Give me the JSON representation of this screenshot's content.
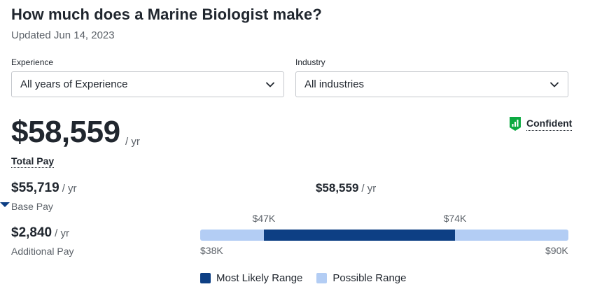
{
  "header": {
    "title": "How much does a Marine Biologist make?",
    "updated": "Updated Jun 14, 2023"
  },
  "filters": {
    "experience": {
      "label": "Experience",
      "value": "All years of Experience"
    },
    "industry": {
      "label": "Industry",
      "value": "All industries"
    }
  },
  "total_pay": {
    "amount": "$58,559",
    "unit": "/ yr",
    "label": "Total Pay"
  },
  "confidence": {
    "label": "Confident",
    "icon": "confidence-bars-icon",
    "color": "#0caa41"
  },
  "base_pay": {
    "amount": "$55,719",
    "unit": "/ yr",
    "label": "Base Pay"
  },
  "additional_pay": {
    "amount": "$2,840",
    "unit": "/ yr",
    "label": "Additional Pay"
  },
  "range": {
    "median_label": "$58,559",
    "median_unit": "/ yr",
    "median_value": 58559,
    "min": 38000,
    "max": 90000,
    "likely_low": 47000,
    "likely_high": 74000,
    "min_label": "$38K",
    "max_label": "$90K",
    "likely_low_label": "$47K",
    "likely_high_label": "$74K"
  },
  "legend": {
    "most_likely": "Most Likely Range",
    "possible": "Possible Range",
    "most_likely_color": "#0d3f84",
    "possible_color": "#b3cdf4"
  }
}
